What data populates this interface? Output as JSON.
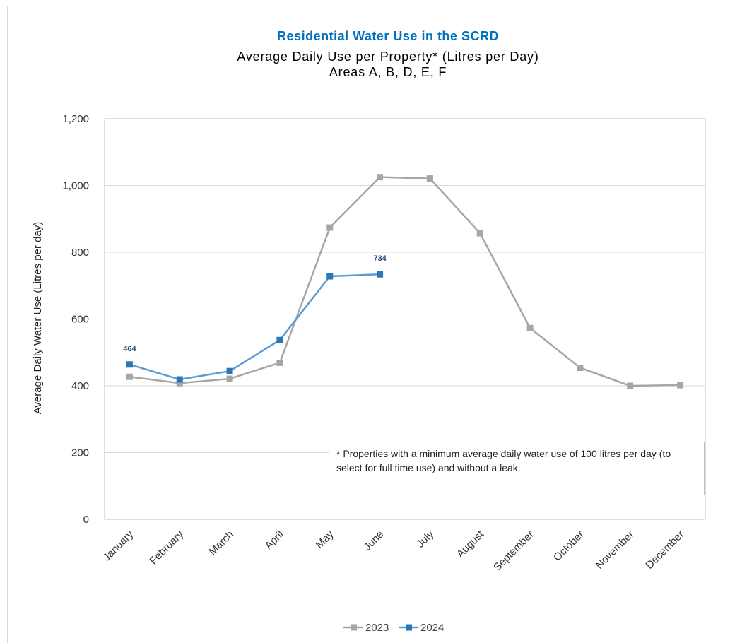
{
  "chart_data": {
    "type": "line",
    "title": "Residential Water Use in the SCRD",
    "subtitle": [
      "Average Daily Use per Property* (Litres per Day)",
      "Areas A, B, D, E, F"
    ],
    "y_label": "Average Daily Water Use (Litres per day)",
    "annotation": "* Properties with a minimum average daily water use of 100 litres per day (to select for full time use) and without a leak.",
    "categories": [
      "January",
      "February",
      "March",
      "April",
      "May",
      "June",
      "July",
      "August",
      "September",
      "October",
      "November",
      "December"
    ],
    "series": [
      {
        "name": "2023",
        "color": "#a6a6a6",
        "values": [
          427,
          408,
          421,
          469,
          874,
          1025,
          1021,
          857,
          573,
          454,
          400,
          402
        ]
      },
      {
        "name": "2024",
        "color": "#5b9bd5",
        "marker_color": "#2e75b6",
        "values": [
          464,
          419,
          444,
          537,
          728,
          734,
          null,
          null,
          null,
          null,
          null,
          null
        ],
        "value_labels": [
          "464",
          null,
          null,
          null,
          null,
          "734",
          null,
          null,
          null,
          null,
          null,
          null
        ]
      }
    ],
    "ylim": [
      0,
      1200
    ],
    "yticks": [
      0,
      200,
      400,
      600,
      800,
      {
        "value": 1000,
        "label": "1,000"
      },
      {
        "value": 1200,
        "label": "1,200"
      }
    ],
    "grid": true,
    "legend": "bottom"
  }
}
